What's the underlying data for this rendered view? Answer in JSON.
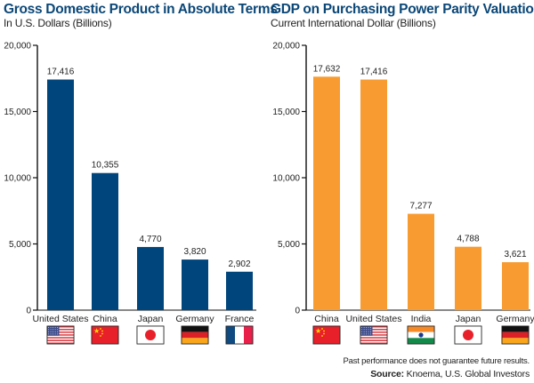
{
  "footer": {
    "disclaimer": "Past performance does not guarantee future results.",
    "source_label": "Source:",
    "source_text": " Knoema, U.S. Global Investors"
  },
  "colors": {
    "left_bar": "#00457c",
    "right_bar": "#f89c31",
    "title": "#0b4777"
  },
  "chart_data": [
    {
      "type": "bar",
      "title": "Gross Domestic Product in Absolute Terms",
      "subtitle": "In U.S. Dollars (Billions)",
      "xlabel": "",
      "ylabel": "",
      "ylim": [
        0,
        20000
      ],
      "yticks": [
        0,
        5000,
        10000,
        15000,
        20000
      ],
      "ytick_labels": [
        "0",
        "5,000",
        "10,000",
        "15,000",
        "20,000"
      ],
      "grid": false,
      "categories": [
        "United States",
        "China",
        "Japan",
        "Germany",
        "France"
      ],
      "flags": [
        "us-flag",
        "china-flag",
        "japan-flag",
        "germany-flag",
        "france-flag"
      ],
      "values": [
        17416,
        10355,
        4770,
        3820,
        2902
      ],
      "value_labels": [
        "17,416",
        "10,355",
        "4,770",
        "3,820",
        "2,902"
      ],
      "color": "#00457c"
    },
    {
      "type": "bar",
      "title": "GDP on Purchasing Power Parity Valuation",
      "subtitle": "Current International Dollar (Billions)",
      "xlabel": "",
      "ylabel": "",
      "ylim": [
        0,
        20000
      ],
      "yticks": [
        0,
        5000,
        10000,
        15000,
        20000
      ],
      "ytick_labels": [
        "0",
        "5,000",
        "10,000",
        "15,000",
        "20,000"
      ],
      "grid": false,
      "categories": [
        "China",
        "United States",
        "India",
        "Japan",
        "Germany"
      ],
      "flags": [
        "china-flag",
        "us-flag",
        "india-flag",
        "japan-flag",
        "germany-flag"
      ],
      "values": [
        17632,
        17416,
        7277,
        4788,
        3621
      ],
      "value_labels": [
        "17,632",
        "17,416",
        "7,277",
        "4,788",
        "3,621"
      ],
      "color": "#f89c31"
    }
  ]
}
